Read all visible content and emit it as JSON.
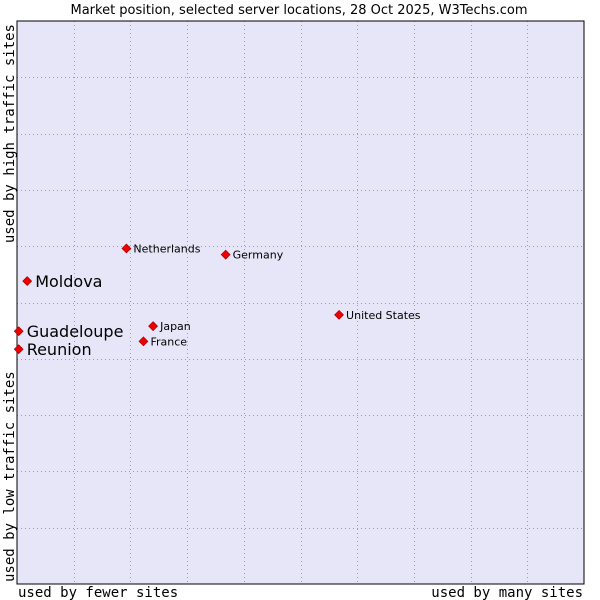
{
  "chart_data": {
    "type": "scatter",
    "title": "Market position, selected server locations, 28 Oct 2025, W3Techs.com",
    "xlabel_left": "used by fewer sites",
    "xlabel_right": "used by many sites",
    "ylabel_bottom": "used by low traffic sites",
    "ylabel_top": "used by high traffic sites",
    "xlim": [
      0,
      100
    ],
    "ylim": [
      0,
      100
    ],
    "grid": true,
    "colors": {
      "plot_bg": "#e6e6f8",
      "grid": "#9a9ab0",
      "marker": "#ee0000",
      "frame": "#000000"
    },
    "points": [
      {
        "label": "Netherlands",
        "x": 19.3,
        "y": 59.6,
        "emphasis": false
      },
      {
        "label": "Germany",
        "x": 36.8,
        "y": 58.5,
        "emphasis": false
      },
      {
        "label": "Moldova",
        "x": 1.8,
        "y": 53.8,
        "emphasis": true
      },
      {
        "label": "United States",
        "x": 56.8,
        "y": 47.8,
        "emphasis": false
      },
      {
        "label": "Japan",
        "x": 24.0,
        "y": 45.8,
        "emphasis": false
      },
      {
        "label": "France",
        "x": 22.3,
        "y": 43.1,
        "emphasis": false
      },
      {
        "label": "Guadeloupe",
        "x": 0.3,
        "y": 44.9,
        "emphasis": true
      },
      {
        "label": "Reunion",
        "x": 0.3,
        "y": 41.7,
        "emphasis": true
      }
    ]
  }
}
